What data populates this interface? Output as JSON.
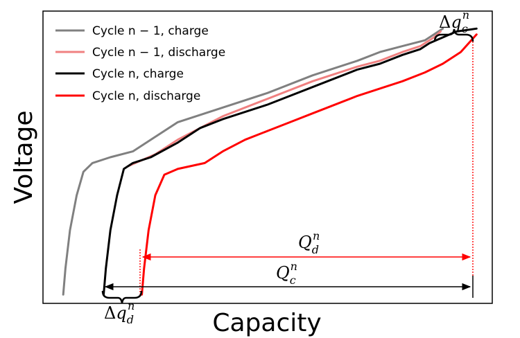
{
  "chart_data": {
    "type": "line",
    "title": "",
    "xlabel": "Capacity",
    "ylabel": "Voltage",
    "x_ticks": "none",
    "y_ticks": "none",
    "grid": false,
    "legend_position": "top-left",
    "xlim": [
      0,
      100
    ],
    "ylim": [
      0,
      100
    ],
    "series": [
      {
        "name": "Cycle n − 1, charge",
        "color": "#808080",
        "points": [
          [
            4.5,
            3
          ],
          [
            5,
            12
          ],
          [
            6,
            25
          ],
          [
            7.5,
            37
          ],
          [
            9,
            45
          ],
          [
            11,
            48
          ],
          [
            15,
            50
          ],
          [
            20,
            52
          ],
          [
            25,
            57
          ],
          [
            30,
            62
          ],
          [
            40,
            67
          ],
          [
            50,
            72
          ],
          [
            60,
            78
          ],
          [
            70,
            83
          ],
          [
            75,
            86
          ],
          [
            80,
            88
          ],
          [
            85,
            90
          ],
          [
            87,
            92
          ],
          [
            89,
            94
          ]
        ]
      },
      {
        "name": "Cycle n − 1, discharge",
        "color": "#f08080",
        "points": [
          [
            19,
            47
          ],
          [
            22,
            49
          ],
          [
            25,
            51
          ],
          [
            30,
            56
          ],
          [
            35,
            60
          ],
          [
            40,
            64
          ],
          [
            50,
            70
          ],
          [
            60,
            76
          ],
          [
            70,
            81
          ],
          [
            75,
            83
          ],
          [
            80,
            86
          ],
          [
            84,
            88
          ],
          [
            87,
            91
          ],
          [
            88.5,
            93
          ]
        ]
      },
      {
        "name": "Cycle n, charge",
        "color": "#000000",
        "points": [
          [
            13.5,
            3
          ],
          [
            14,
            12
          ],
          [
            15,
            25
          ],
          [
            16.5,
            37
          ],
          [
            18,
            46
          ],
          [
            20,
            48
          ],
          [
            24,
            50
          ],
          [
            30,
            55
          ],
          [
            35,
            60
          ],
          [
            40,
            63
          ],
          [
            50,
            68
          ],
          [
            60,
            74
          ],
          [
            70,
            80
          ],
          [
            75,
            82
          ],
          [
            80,
            85
          ],
          [
            84,
            87
          ],
          [
            86,
            89
          ],
          [
            89,
            91
          ],
          [
            92,
            93
          ],
          [
            96.5,
            94
          ]
        ]
      },
      {
        "name": "Cycle n, discharge",
        "color": "#ff0000",
        "points": [
          [
            22,
            3
          ],
          [
            22.5,
            12
          ],
          [
            23.5,
            25
          ],
          [
            25,
            37
          ],
          [
            27,
            44
          ],
          [
            30,
            46
          ],
          [
            36,
            48
          ],
          [
            40,
            52
          ],
          [
            45,
            56
          ],
          [
            50,
            59
          ],
          [
            55,
            62
          ],
          [
            60,
            65
          ],
          [
            70,
            71
          ],
          [
            80,
            76
          ],
          [
            85,
            79
          ],
          [
            89,
            82
          ],
          [
            93,
            86
          ],
          [
            96.5,
            92
          ]
        ]
      }
    ],
    "annotations": [
      {
        "text": "Q_d^n",
        "color": "#ff0000",
        "from_x": 22,
        "to_x": 96.5,
        "y": 10,
        "style": "double-arrow"
      },
      {
        "text": "Q_c^n",
        "color": "#000000",
        "from_x": 13.5,
        "to_x": 96.5,
        "y": 3,
        "style": "double-arrow"
      },
      {
        "text": "Δq_c^n",
        "color": "#000000",
        "from_x": 89,
        "to_x": 96.5,
        "position": "top-right",
        "style": "brace"
      },
      {
        "text": "Δq_d^n",
        "color": "#000000",
        "from_x": 13.5,
        "to_x": 22,
        "position": "bottom-left",
        "style": "brace"
      }
    ]
  }
}
